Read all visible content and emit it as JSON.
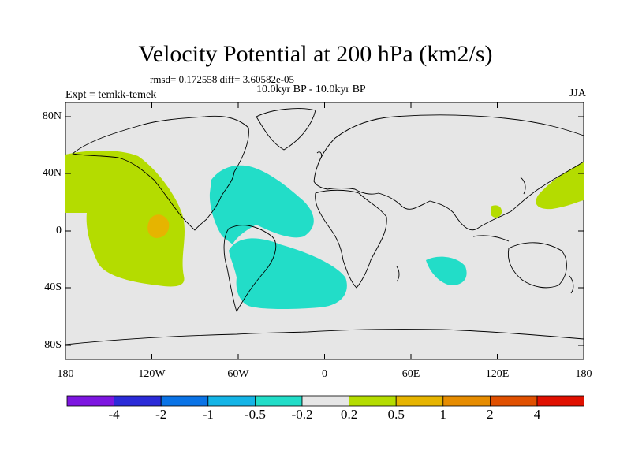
{
  "header": {
    "title": "Velocity Potential at 200 hPa (km2/s)",
    "stats": "rmsd= 0.172558 diff= 3.60582e-05",
    "period": "10.0kyr BP - 10.0kyr BP",
    "experiment": "Expt = temkk-temek",
    "season": "JJA"
  },
  "map": {
    "y_axis": {
      "labels": [
        "80N",
        "40N",
        "0",
        "40S",
        "80S"
      ],
      "values": [
        80,
        40,
        0,
        -40,
        -80
      ]
    },
    "x_axis": {
      "labels": [
        "180",
        "120W",
        "60W",
        "0",
        "60E",
        "120E",
        "180"
      ],
      "values": [
        -180,
        -120,
        -60,
        0,
        60,
        120,
        180
      ]
    },
    "anomalies": [
      {
        "name": "east-pacific-positive",
        "level": "0.2 to 0.5"
      },
      {
        "name": "east-pacific-core",
        "level": "0.5 to 1"
      },
      {
        "name": "atlantic-negative",
        "level": "-0.5 to -0.2"
      },
      {
        "name": "south-atlantic-negative",
        "level": "-0.5 to -0.2"
      },
      {
        "name": "indian-ocean-negative",
        "level": "-0.5 to -0.2"
      },
      {
        "name": "west-pacific-positive",
        "level": "0.2 to 0.5"
      },
      {
        "name": "philippine-positive",
        "level": "0.2 to 0.5"
      }
    ]
  },
  "colorbar": {
    "boundaries": [
      "-4",
      "-2",
      "-1",
      "-0.5",
      "-0.2",
      "0.2",
      "0.5",
      "1",
      "2",
      "4"
    ],
    "colors": [
      "#7d16e0",
      "#2b2bd8",
      "#0a73e6",
      "#14b4e6",
      "#22ddc8",
      "#e6e6e6",
      "#b4dc00",
      "#e6b400",
      "#e68c00",
      "#e05000",
      "#e01000"
    ]
  },
  "colors": {
    "background": "#e6e6e6",
    "negative": "#22ddc8",
    "positive": "#b4dc00",
    "strong_positive": "#e6b400"
  }
}
